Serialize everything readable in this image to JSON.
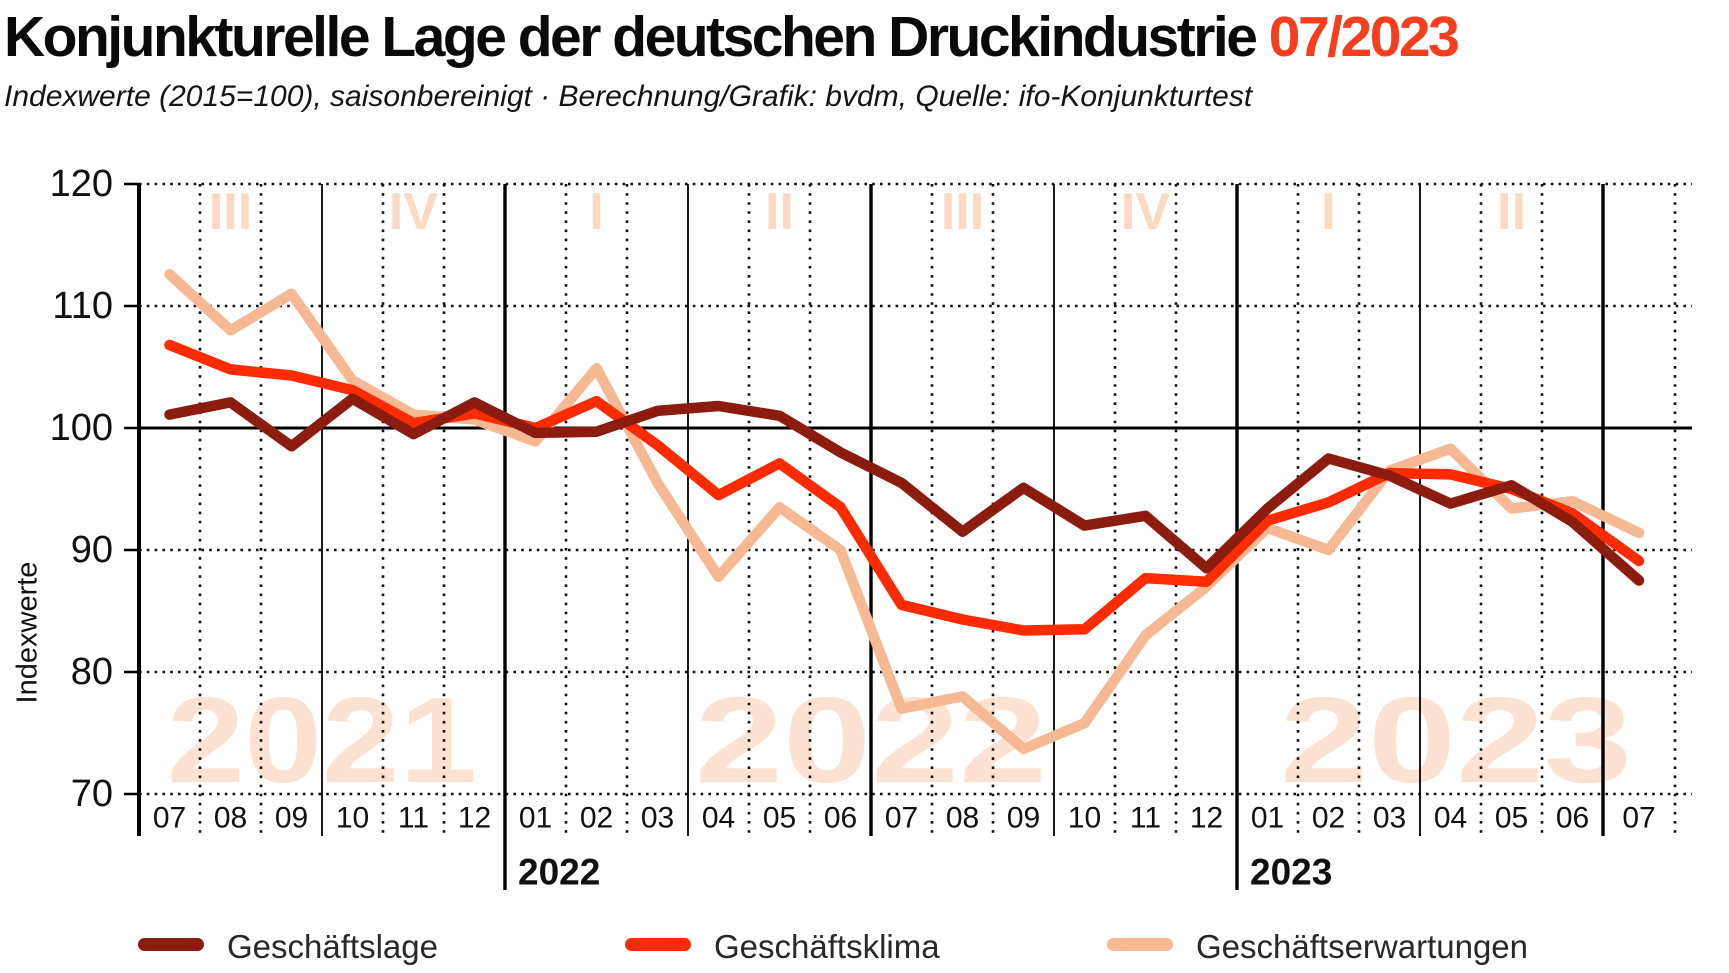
{
  "header": {
    "title": "Konjunkturelle Lage der deutschen Druckindustrie",
    "title_accent": "07/2023",
    "subtitle": "Indexwerte (2015=100), saisonbereinigt · Berechnung/Grafik: bvdm, Quelle: ifo-Konjunkturtest"
  },
  "colors": {
    "title_accent": "#f43e1e",
    "lage": "#8c1c10",
    "klima": "#fc2b02",
    "erwartungen": "#f7b894",
    "quarter_label": "#fcd9c2",
    "year_watermark": "#fde2d2",
    "grid": "#111111",
    "text": "#111111"
  },
  "chart_data": {
    "type": "line",
    "title": "Konjunkturelle Lage der deutschen Druckindustrie 07/2023",
    "subtitle": "Indexwerte (2015=100), saisonbereinigt",
    "source": "Berechnung/Grafik: bvdm, Quelle: ifo-Konjunkturtest",
    "ylabel": "Indexwerte",
    "ylim": [
      70,
      120
    ],
    "yticks": [
      120,
      110,
      100,
      90,
      80,
      70
    ],
    "baseline": 100,
    "grid": "dotted monthly gridlines, solid quarter separators, bold half-year separators",
    "legend_position": "bottom",
    "x_months": [
      "07",
      "08",
      "09",
      "10",
      "11",
      "12",
      "01",
      "02",
      "03",
      "04",
      "05",
      "06",
      "07",
      "08",
      "09",
      "10",
      "11",
      "12",
      "01",
      "02",
      "03",
      "04",
      "05",
      "06",
      "07"
    ],
    "quarter_labels": [
      "III",
      "IV",
      "I",
      "II",
      "III",
      "IV",
      "I",
      "II"
    ],
    "year_watermarks": [
      "2021",
      "2022",
      "2023"
    ],
    "year_axis_labels": [
      {
        "label": "2022",
        "after_month_index": 6
      },
      {
        "label": "2023",
        "after_month_index": 18
      }
    ],
    "series": [
      {
        "name": "Geschäftslage",
        "color": "#8c1c10",
        "values": [
          101.1,
          102.1,
          98.5,
          102.4,
          99.5,
          102.1,
          99.6,
          99.7,
          101.4,
          101.8,
          101.0,
          98.0,
          95.5,
          91.5,
          95.1,
          92.0,
          92.8,
          88.5,
          93.4,
          97.5,
          96.1,
          93.8,
          95.3,
          92.3,
          87.5
        ]
      },
      {
        "name": "Geschäftsklima",
        "color": "#fc2b02",
        "values": [
          106.8,
          104.8,
          104.3,
          103.1,
          100.4,
          101.2,
          100.0,
          102.2,
          98.6,
          94.5,
          97.1,
          93.5,
          85.5,
          84.3,
          83.4,
          83.5,
          87.7,
          87.4,
          92.4,
          93.9,
          96.3,
          96.2,
          95.0,
          93.0,
          89.1
        ]
      },
      {
        "name": "Geschäftserwartungen",
        "color": "#f7b894",
        "values": [
          112.6,
          108.0,
          111.0,
          103.9,
          101.1,
          100.7,
          98.9,
          104.9,
          95.5,
          87.8,
          93.5,
          90.0,
          77.0,
          78.0,
          73.7,
          75.8,
          83.0,
          87.0,
          91.8,
          90.0,
          96.5,
          98.3,
          93.4,
          94.0,
          91.4
        ]
      }
    ]
  },
  "legend": {
    "items": [
      {
        "label": "Geschäftslage",
        "color": "#8c1c10"
      },
      {
        "label": "Geschäftsklima",
        "color": "#fc2b02"
      },
      {
        "label": "Geschäftserwartungen",
        "color": "#f7b894"
      }
    ]
  }
}
